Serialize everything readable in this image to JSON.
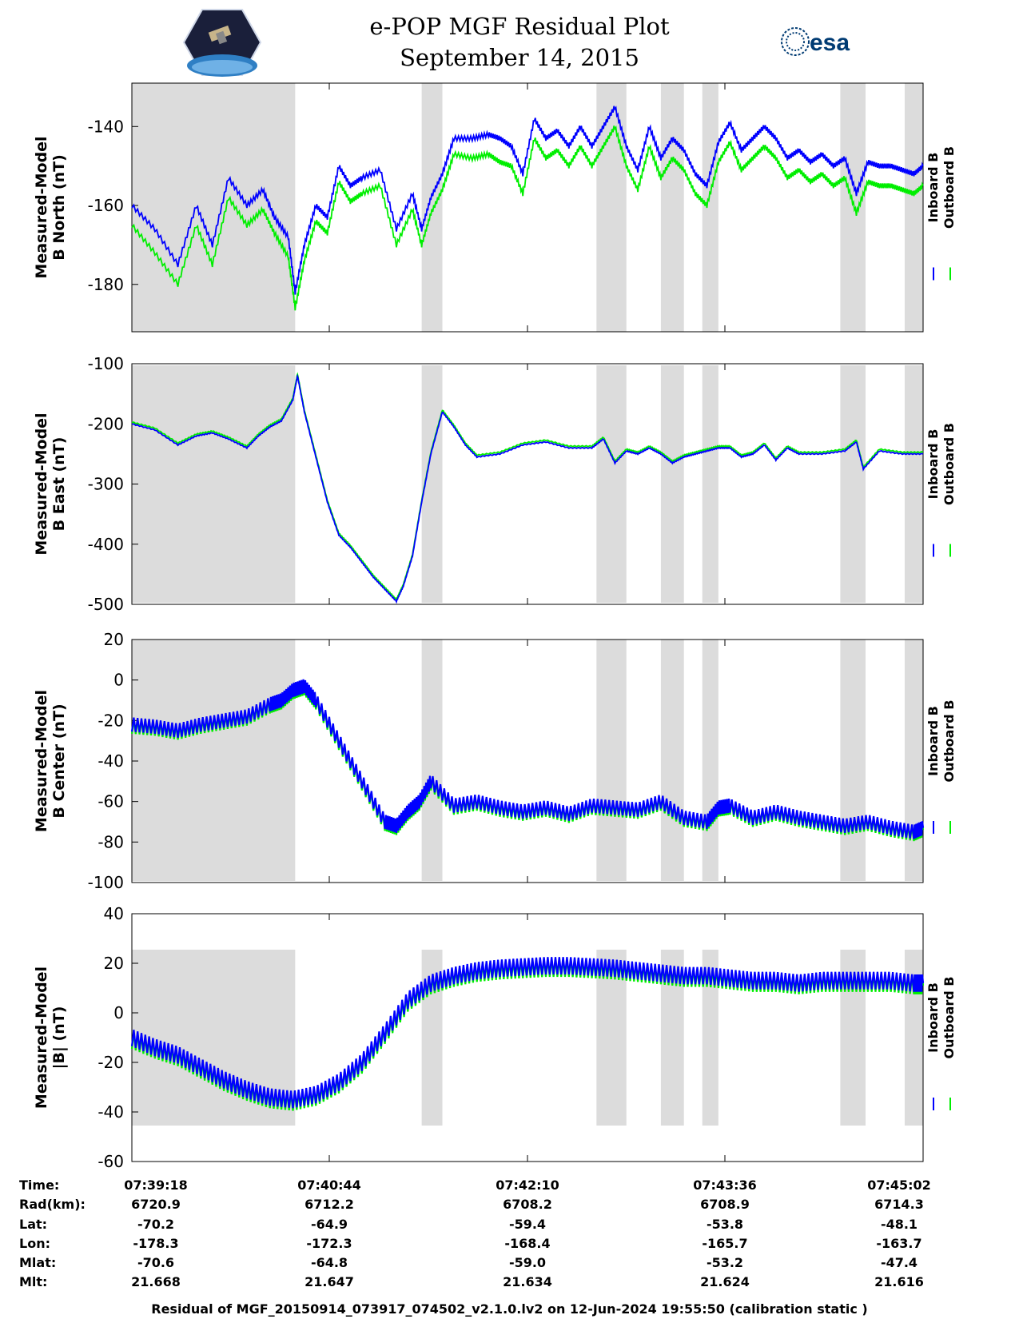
{
  "title": "e-POP MGF Residual Plot",
  "subtitle": "September 14, 2015",
  "logos": {
    "left": "cassiope-mission-patch",
    "right": "esa-logo",
    "right_text": "esa"
  },
  "colors": {
    "inboard": "#0000ff",
    "outboard": "#00ee00",
    "shade": "#dcdcdc"
  },
  "legend": {
    "inboard": "Inboard B",
    "outboard": "Outboard B"
  },
  "x_ticks": [
    "07:39:18",
    "07:40:44",
    "07:42:10",
    "07:43:36",
    "07:45:02"
  ],
  "ephemeris": {
    "labels": [
      "Time:",
      "Rad(km):",
      "Lat:",
      "Lon:",
      "Mlat:",
      "Mlt:"
    ],
    "rows": [
      [
        "07:39:18",
        "07:40:44",
        "07:42:10",
        "07:43:36",
        "07:45:02"
      ],
      [
        "6720.9",
        "6712.2",
        "6708.2",
        "6708.9",
        "6714.3"
      ],
      [
        "-70.2",
        "-64.9",
        "-59.4",
        "-53.8",
        "-48.1"
      ],
      [
        "-178.3",
        "-172.3",
        "-168.4",
        "-165.7",
        "-163.7"
      ],
      [
        "-70.6",
        "-64.8",
        "-59.0",
        "-53.2",
        "-47.4"
      ],
      [
        "21.668",
        "21.647",
        "21.634",
        "21.624",
        "21.616"
      ]
    ]
  },
  "footer": "Residual of MGF_20150914_073917_074502_v2.1.0.lv2 on 12-Jun-2024 19:55:50 (calibration static )",
  "chart_data": [
    {
      "type": "line",
      "ylabel": [
        "Measured-Model",
        "B North (nT)"
      ],
      "ylim": [
        -192,
        -129
      ],
      "yticks": [
        -140,
        -160,
        -180
      ],
      "x_range_seconds": [
        0,
        344
      ],
      "shaded_ranges": [
        [
          0,
          71
        ],
        [
          126,
          135
        ],
        [
          202,
          215
        ],
        [
          230,
          240
        ],
        [
          248,
          255
        ],
        [
          308,
          319
        ],
        [
          336,
          344
        ]
      ],
      "series": [
        {
          "name": "Inboard B",
          "x": [
            0,
            10,
            20,
            28,
            35,
            42,
            50,
            57,
            62,
            68,
            71,
            75,
            80,
            85,
            90,
            95,
            100,
            108,
            115,
            122,
            126,
            130,
            135,
            140,
            148,
            155,
            160,
            165,
            170,
            175,
            180,
            185,
            190,
            195,
            200,
            205,
            210,
            215,
            220,
            225,
            230,
            235,
            240,
            245,
            250,
            255,
            260,
            265,
            270,
            275,
            280,
            285,
            290,
            295,
            300,
            305,
            310,
            315,
            320,
            325,
            330,
            335,
            340,
            344
          ],
          "y": [
            -160,
            -166,
            -175,
            -160,
            -170,
            -153,
            -160,
            -156,
            -163,
            -168,
            -182,
            -170,
            -160,
            -163,
            -150,
            -155,
            -153,
            -151,
            -166,
            -157,
            -166,
            -158,
            -152,
            -143,
            -143,
            -142,
            -143,
            -145,
            -152,
            -138,
            -143,
            -141,
            -145,
            -140,
            -145,
            -140,
            -135,
            -145,
            -151,
            -140,
            -148,
            -143,
            -146,
            -152,
            -155,
            -144,
            -139,
            -146,
            -143,
            -140,
            -143,
            -148,
            -146,
            -149,
            -147,
            -150,
            -148,
            -157,
            -149,
            -150,
            -150,
            -151,
            -152,
            -150
          ]
        },
        {
          "name": "Outboard B",
          "x": [
            0,
            10,
            20,
            28,
            35,
            42,
            50,
            57,
            62,
            68,
            71,
            75,
            80,
            85,
            90,
            95,
            100,
            108,
            115,
            122,
            126,
            130,
            135,
            140,
            148,
            155,
            160,
            165,
            170,
            175,
            180,
            185,
            190,
            195,
            200,
            205,
            210,
            215,
            220,
            225,
            230,
            235,
            240,
            245,
            250,
            255,
            260,
            265,
            270,
            275,
            280,
            285,
            290,
            295,
            300,
            305,
            310,
            315,
            320,
            325,
            330,
            335,
            340,
            344
          ],
          "y": [
            -165,
            -172,
            -180,
            -165,
            -175,
            -158,
            -165,
            -161,
            -167,
            -173,
            -186,
            -174,
            -164,
            -167,
            -154,
            -159,
            -157,
            -155,
            -170,
            -161,
            -170,
            -162,
            -156,
            -147,
            -148,
            -147,
            -149,
            -150,
            -157,
            -143,
            -148,
            -146,
            -150,
            -145,
            -150,
            -145,
            -140,
            -150,
            -156,
            -145,
            -153,
            -148,
            -151,
            -157,
            -160,
            -149,
            -144,
            -151,
            -148,
            -145,
            -148,
            -153,
            -151,
            -154,
            -152,
            -155,
            -153,
            -162,
            -154,
            -155,
            -155,
            -156,
            -157,
            -155
          ]
        }
      ]
    },
    {
      "type": "line",
      "ylabel": [
        "Measured-Model",
        "B East (nT)"
      ],
      "ylim": [
        -500,
        -100
      ],
      "yticks": [
        -100,
        -200,
        -300,
        -400,
        -500
      ],
      "x_range_seconds": [
        0,
        344
      ],
      "shaded_ranges": [
        [
          0,
          71
        ],
        [
          126,
          135
        ],
        [
          202,
          215
        ],
        [
          230,
          240
        ],
        [
          248,
          255
        ],
        [
          308,
          319
        ],
        [
          336,
          344
        ]
      ],
      "series": [
        {
          "name": "Inboard B",
          "x": [
            0,
            10,
            20,
            28,
            35,
            42,
            50,
            55,
            60,
            65,
            70,
            72,
            75,
            80,
            85,
            90,
            95,
            100,
            105,
            110,
            115,
            118,
            122,
            126,
            130,
            135,
            140,
            145,
            150,
            160,
            170,
            180,
            190,
            200,
            205,
            210,
            215,
            220,
            225,
            230,
            235,
            240,
            245,
            250,
            255,
            260,
            265,
            270,
            275,
            280,
            285,
            290,
            300,
            310,
            315,
            318,
            325,
            335,
            344
          ],
          "y": [
            -200,
            -210,
            -235,
            -220,
            -215,
            -225,
            -240,
            -220,
            -205,
            -195,
            -160,
            -120,
            -180,
            -255,
            -330,
            -385,
            -405,
            -430,
            -455,
            -475,
            -495,
            -470,
            -420,
            -330,
            -250,
            -180,
            -205,
            -235,
            -255,
            -250,
            -235,
            -230,
            -240,
            -240,
            -225,
            -265,
            -245,
            -250,
            -240,
            -250,
            -265,
            -255,
            -250,
            -245,
            -240,
            -240,
            -255,
            -250,
            -235,
            -260,
            -240,
            -250,
            -250,
            -245,
            -230,
            -275,
            -245,
            -250,
            -250
          ]
        },
        {
          "name": "Outboard B",
          "x": [
            0,
            10,
            20,
            28,
            35,
            42,
            50,
            55,
            60,
            65,
            70,
            72,
            75,
            80,
            85,
            90,
            95,
            100,
            105,
            110,
            115,
            118,
            122,
            126,
            130,
            135,
            140,
            145,
            150,
            160,
            170,
            180,
            190,
            200,
            205,
            210,
            215,
            220,
            225,
            230,
            235,
            240,
            245,
            250,
            255,
            260,
            265,
            270,
            275,
            280,
            285,
            290,
            300,
            310,
            315,
            318,
            325,
            335,
            344
          ],
          "y": [
            -197,
            -207,
            -232,
            -217,
            -212,
            -222,
            -237,
            -217,
            -202,
            -192,
            -157,
            -117,
            -177,
            -252,
            -327,
            -382,
            -402,
            -427,
            -452,
            -472,
            -492,
            -467,
            -417,
            -327,
            -247,
            -177,
            -202,
            -232,
            -252,
            -247,
            -232,
            -227,
            -237,
            -237,
            -222,
            -262,
            -242,
            -247,
            -237,
            -247,
            -262,
            -252,
            -247,
            -242,
            -237,
            -237,
            -252,
            -247,
            -232,
            -257,
            -237,
            -247,
            -247,
            -242,
            -227,
            -272,
            -242,
            -247,
            -247
          ]
        }
      ]
    },
    {
      "type": "line",
      "ylabel": [
        "Measured-Model",
        "B Center (nT)"
      ],
      "ylim": [
        -100,
        20
      ],
      "yticks": [
        20,
        0,
        -20,
        -40,
        -60,
        -80,
        -100
      ],
      "x_range_seconds": [
        0,
        344
      ],
      "shaded_ranges": [
        [
          0,
          71
        ],
        [
          126,
          135
        ],
        [
          202,
          215
        ],
        [
          230,
          240
        ],
        [
          248,
          255
        ],
        [
          308,
          319
        ],
        [
          336,
          344
        ]
      ],
      "series": [
        {
          "name": "Inboard B",
          "x": [
            0,
            10,
            20,
            30,
            40,
            50,
            60,
            65,
            70,
            75,
            80,
            90,
            100,
            110,
            115,
            120,
            125,
            130,
            140,
            150,
            160,
            170,
            180,
            190,
            200,
            210,
            220,
            230,
            240,
            250,
            255,
            260,
            270,
            280,
            290,
            300,
            310,
            320,
            330,
            340,
            344
          ],
          "y": [
            -22,
            -23,
            -25,
            -22,
            -20,
            -18,
            -12,
            -10,
            -5,
            -3,
            -10,
            -30,
            -50,
            -70,
            -72,
            -65,
            -60,
            -50,
            -62,
            -60,
            -63,
            -65,
            -63,
            -66,
            -62,
            -63,
            -64,
            -60,
            -68,
            -70,
            -63,
            -62,
            -68,
            -65,
            -68,
            -70,
            -72,
            -70,
            -73,
            -75,
            -73
          ]
        },
        {
          "name": "Outboard B",
          "x": [
            0,
            10,
            20,
            30,
            40,
            50,
            60,
            65,
            70,
            75,
            80,
            90,
            100,
            110,
            115,
            120,
            125,
            130,
            140,
            150,
            160,
            170,
            180,
            190,
            200,
            210,
            220,
            230,
            240,
            250,
            255,
            260,
            270,
            280,
            290,
            300,
            310,
            320,
            330,
            340,
            344
          ],
          "y": [
            -23,
            -24,
            -26,
            -23,
            -21,
            -19,
            -13,
            -11,
            -6,
            -4,
            -11,
            -31,
            -51,
            -71,
            -73,
            -66,
            -61,
            -51,
            -63,
            -61,
            -64,
            -66,
            -64,
            -67,
            -63,
            -64,
            -65,
            -61,
            -69,
            -71,
            -64,
            -63,
            -69,
            -66,
            -69,
            -71,
            -73,
            -71,
            -74,
            -76,
            -74
          ]
        }
      ]
    },
    {
      "type": "line",
      "ylabel": [
        "Measured-Model",
        "|B| (nT)"
      ],
      "ylim": [
        -60,
        40
      ],
      "yticks": [
        40,
        20,
        0,
        -20,
        -40,
        -60
      ],
      "x_range_seconds": [
        0,
        344
      ],
      "shaded_ranges": [
        [
          0,
          71
        ],
        [
          126,
          135
        ],
        [
          202,
          215
        ],
        [
          230,
          240
        ],
        [
          248,
          255
        ],
        [
          308,
          319
        ],
        [
          336,
          344
        ]
      ],
      "series": [
        {
          "name": "Inboard B",
          "x": [
            0,
            10,
            20,
            30,
            40,
            50,
            60,
            70,
            80,
            90,
            100,
            110,
            120,
            130,
            140,
            150,
            160,
            170,
            180,
            190,
            200,
            210,
            220,
            230,
            240,
            250,
            260,
            270,
            280,
            290,
            300,
            310,
            320,
            330,
            340,
            344
          ],
          "y": [
            -10,
            -14,
            -17,
            -22,
            -27,
            -31,
            -34,
            -35,
            -33,
            -28,
            -20,
            -8,
            5,
            12,
            15,
            17,
            18,
            18.5,
            19,
            19,
            18.5,
            18,
            17,
            16,
            15,
            15,
            14,
            13,
            13,
            12,
            13,
            13,
            13,
            13,
            12,
            12
          ]
        },
        {
          "name": "Outboard B",
          "x": [
            0,
            10,
            20,
            30,
            40,
            50,
            60,
            70,
            80,
            90,
            100,
            110,
            120,
            130,
            140,
            150,
            160,
            170,
            180,
            190,
            200,
            210,
            220,
            230,
            240,
            250,
            260,
            270,
            280,
            290,
            300,
            310,
            320,
            330,
            340,
            344
          ],
          "y": [
            -11,
            -15,
            -18,
            -23,
            -28,
            -32,
            -35,
            -36,
            -34,
            -29,
            -21,
            -9,
            4,
            11,
            14,
            16,
            17,
            17.5,
            18,
            18,
            17.5,
            17,
            16,
            15,
            14,
            14,
            13,
            12,
            12,
            11,
            12,
            12,
            12,
            12,
            11,
            11
          ]
        }
      ]
    }
  ]
}
